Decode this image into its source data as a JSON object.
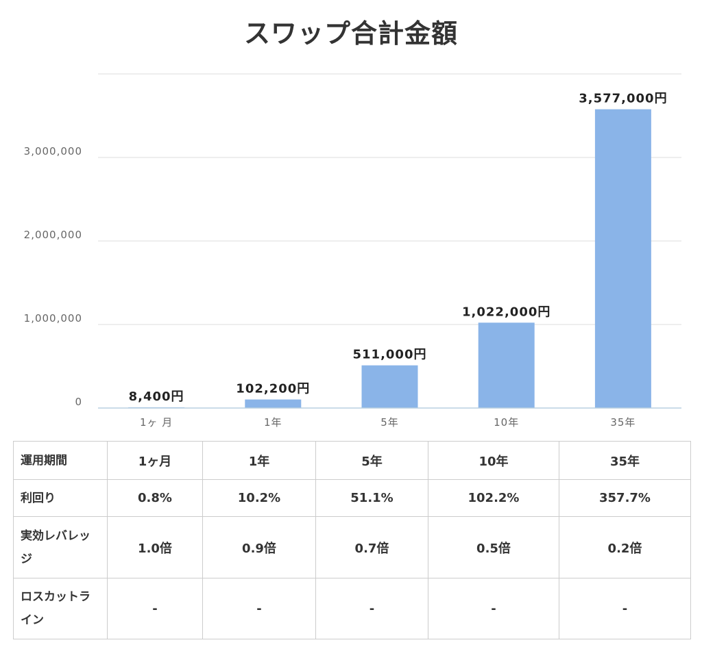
{
  "chart_data": {
    "type": "bar",
    "title": "スワップ合計金額",
    "categories": [
      "1ヶ 月",
      "1年",
      "5年",
      "10年",
      "35年"
    ],
    "values": [
      8400,
      102200,
      511000,
      1022000,
      3577000
    ],
    "data_labels": [
      "8,400円",
      "102,200円",
      "511,000円",
      "1,022,000円",
      "3,577,000円"
    ],
    "yticks": [
      "0",
      "1,000,000",
      "2,000,000",
      "3,000,000"
    ],
    "ytick_values": [
      0,
      1000000,
      2000000,
      3000000
    ],
    "ylim": [
      0,
      4000000
    ],
    "xlabel": "",
    "ylabel": "",
    "grid": true,
    "legend": "none",
    "bar_color": "#8ab4e8"
  },
  "table": {
    "rows": [
      {
        "label": "運用期間",
        "cells": [
          "1ヶ月",
          "1年",
          "5年",
          "10年",
          "35年"
        ]
      },
      {
        "label": "利回り",
        "cells": [
          "0.8%",
          "10.2%",
          "51.1%",
          "102.2%",
          "357.7%"
        ]
      },
      {
        "label": "実効レバレッジ",
        "cells": [
          "1.0倍",
          "0.9倍",
          "0.7倍",
          "0.5倍",
          "0.2倍"
        ]
      },
      {
        "label": "ロスカットライン",
        "cells": [
          "-",
          "-",
          "-",
          "-",
          "-"
        ]
      }
    ]
  },
  "colors": {
    "bar": "#8ab4e8",
    "grid": "#dddddd",
    "axis": "#b8cfe0",
    "border": "#cccccc",
    "text": "#333333"
  }
}
